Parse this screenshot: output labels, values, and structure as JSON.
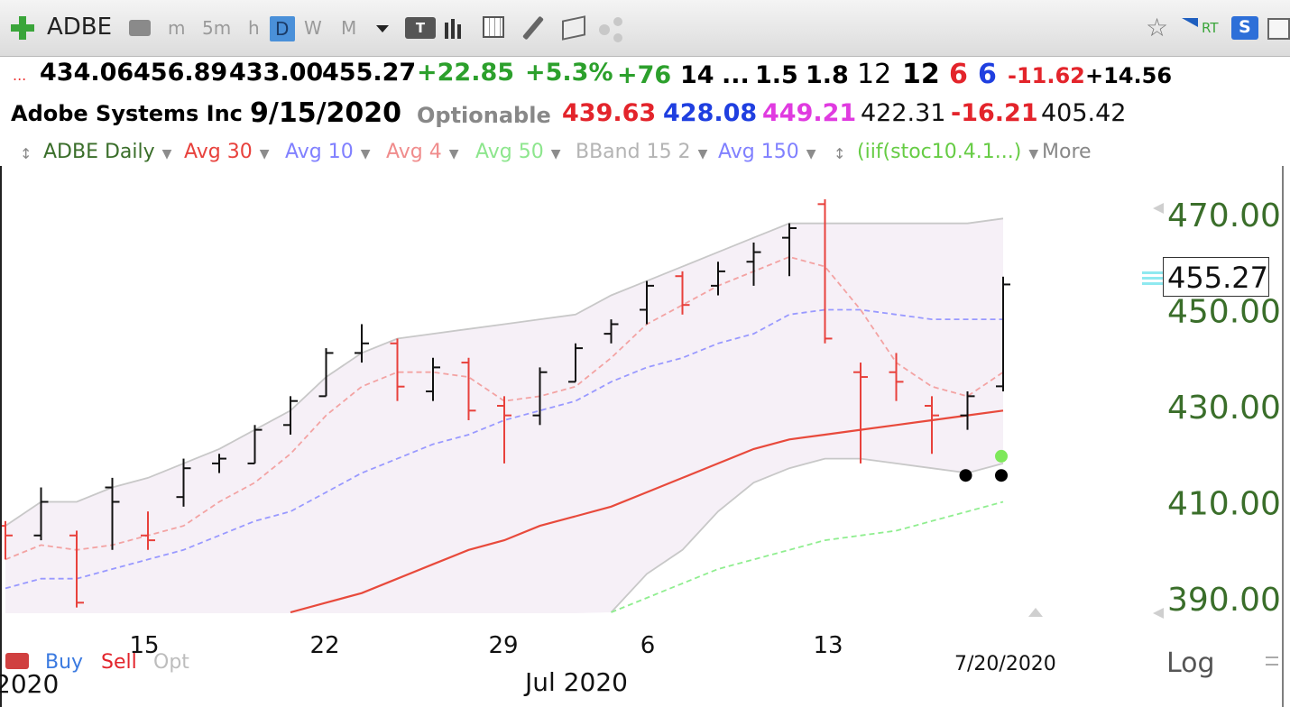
{
  "toolbar": {
    "symbol": "ADBE",
    "intervals": [
      "m",
      "5m",
      "h",
      "D",
      "W",
      "M"
    ],
    "active_interval": "D",
    "rt_label": "RT",
    "s_label": "S"
  },
  "quote": {
    "open": "434.06",
    "high": "456.89",
    "low": "433.00",
    "close": "455.27",
    "change": "+22.85",
    "change_pct": "+5.3%",
    "v1": "+76",
    "v2": "14",
    "ellipsis": "...",
    "v3": "1.5",
    "v4": "1.8",
    "v5": "12",
    "v6": "12",
    "v7": "6",
    "v8": "6",
    "v9": "-11.62",
    "v10": "+14.56"
  },
  "info": {
    "company": "Adobe Systems Inc",
    "date": "9/15/2020",
    "optionable": "Optionable",
    "p1": "439.63",
    "p2": "428.08",
    "p3": "449.21",
    "p4": "422.31",
    "p5": "-16.21",
    "p6": "405.42"
  },
  "legend": [
    {
      "label": "ADBE Daily",
      "color": "#3a6e2a"
    },
    {
      "label": "Avg 30",
      "color": "#e8413c"
    },
    {
      "label": "Avg 10",
      "color": "#8080ff"
    },
    {
      "label": "Avg 4",
      "color": "#f08c8c"
    },
    {
      "label": "Avg 50",
      "color": "#8de68d"
    },
    {
      "label": "BBand 15 2",
      "color": "#b4b4b4"
    },
    {
      "label": "Avg 150",
      "color": "#8080ff"
    },
    {
      "label": "(iif(stoc10.4.1...)",
      "color": "#66cc44"
    }
  ],
  "legend_more": "More",
  "price_label": "455.27",
  "bottom": {
    "buy": "Buy",
    "sell": "Sell",
    "opt": "Opt",
    "year_left": "2020",
    "month": "Jul 2020",
    "date": "7/20/2020",
    "log": "Log"
  },
  "chart_data": {
    "type": "ohlc",
    "title": "ADBE Daily",
    "ylim": [
      386,
      474
    ],
    "y_ticks": [
      470,
      450,
      430,
      410,
      390
    ],
    "y_tick_labels": [
      "470.00",
      "450.00",
      "430.00",
      "410.00",
      "390.00"
    ],
    "x_tick_labels": [
      "15",
      "22",
      "29",
      "6",
      "13"
    ],
    "last_price": 455.27,
    "bars": [
      {
        "o": 405.0,
        "h": 406.0,
        "l": 398.0,
        "c": 403.0,
        "dir": "down"
      },
      {
        "o": 403.0,
        "h": 413.0,
        "l": 402.0,
        "c": 410.0,
        "dir": "up"
      },
      {
        "o": 403.0,
        "h": 404.0,
        "l": 388.0,
        "c": 389.0,
        "dir": "down"
      },
      {
        "o": 413.0,
        "h": 415.0,
        "l": 400.0,
        "c": 410.0,
        "dir": "up"
      },
      {
        "o": 403.0,
        "h": 408.0,
        "l": 400.0,
        "c": 402.0,
        "dir": "down"
      },
      {
        "o": 411.0,
        "h": 419.0,
        "l": 409.0,
        "c": 417.0,
        "dir": "up"
      },
      {
        "o": 418.0,
        "h": 420.0,
        "l": 416.0,
        "c": 419.0,
        "dir": "up"
      },
      {
        "o": 418.0,
        "h": 426.0,
        "l": 418.0,
        "c": 425.0,
        "dir": "up"
      },
      {
        "o": 426.0,
        "h": 432.0,
        "l": 424.0,
        "c": 431.0,
        "dir": "up"
      },
      {
        "o": 432.0,
        "h": 442.0,
        "l": 432.0,
        "c": 441.0,
        "dir": "up"
      },
      {
        "o": 441.0,
        "h": 447.0,
        "l": 439.0,
        "c": 443.0,
        "dir": "up"
      },
      {
        "o": 443.0,
        "h": 444.0,
        "l": 431.0,
        "c": 434.0,
        "dir": "down"
      },
      {
        "o": 433.0,
        "h": 440.0,
        "l": 431.0,
        "c": 438.0,
        "dir": "up"
      },
      {
        "o": 439.0,
        "h": 440.0,
        "l": 427.0,
        "c": 429.0,
        "dir": "down"
      },
      {
        "o": 430.0,
        "h": 432.0,
        "l": 418.0,
        "c": 428.0,
        "dir": "down"
      },
      {
        "o": 428.0,
        "h": 438.0,
        "l": 426.0,
        "c": 437.0,
        "dir": "up"
      },
      {
        "o": 435.0,
        "h": 443.0,
        "l": 435.0,
        "c": 442.0,
        "dir": "up"
      },
      {
        "o": 445.0,
        "h": 448.0,
        "l": 443.0,
        "c": 447.0,
        "dir": "up"
      },
      {
        "o": 450.0,
        "h": 456.0,
        "l": 447.0,
        "c": 455.0,
        "dir": "up"
      },
      {
        "o": 457.0,
        "h": 458.0,
        "l": 449.0,
        "c": 451.0,
        "dir": "down"
      },
      {
        "o": 455.0,
        "h": 460.0,
        "l": 453.0,
        "c": 458.0,
        "dir": "up"
      },
      {
        "o": 460.0,
        "h": 464.0,
        "l": 455.0,
        "c": 462.0,
        "dir": "up"
      },
      {
        "o": 465.0,
        "h": 468.0,
        "l": 457.0,
        "c": 467.0,
        "dir": "up"
      },
      {
        "o": 472.0,
        "h": 473.0,
        "l": 443.0,
        "c": 444.0,
        "dir": "down"
      },
      {
        "o": 437.0,
        "h": 439.0,
        "l": 418.0,
        "c": 436.0,
        "dir": "down"
      },
      {
        "o": 437.0,
        "h": 441.0,
        "l": 431.0,
        "c": 435.0,
        "dir": "down"
      },
      {
        "o": 430.0,
        "h": 432.0,
        "l": 420.0,
        "c": 428.0,
        "dir": "down"
      },
      {
        "o": 428.0,
        "h": 433.0,
        "l": 425.0,
        "c": 432.0,
        "dir": "up"
      },
      {
        "o": 434.06,
        "h": 456.89,
        "l": 433.0,
        "c": 455.27,
        "dir": "up"
      }
    ],
    "series": [
      {
        "name": "Avg 4",
        "color": "#f3a3a3",
        "dash": true,
        "values": [
          398,
          401,
          400,
          401,
          403,
          405,
          410,
          414,
          420,
          428,
          434,
          437,
          437,
          436,
          431,
          432,
          434,
          440,
          447,
          451,
          455,
          458,
          461,
          459,
          450,
          439,
          434,
          432,
          437
        ]
      },
      {
        "name": "Avg 10",
        "color": "#9999ff",
        "dash": true,
        "values": [
          392,
          394,
          394,
          396,
          398,
          400,
          403,
          406,
          408,
          412,
          416,
          419,
          422,
          424,
          427,
          429,
          431,
          435,
          438,
          440,
          443,
          445,
          449,
          450,
          450,
          449,
          448,
          448,
          448
        ]
      },
      {
        "name": "Avg 30",
        "color": "#e84a3c",
        "dash": false,
        "values": [
          null,
          null,
          null,
          null,
          null,
          null,
          null,
          null,
          387,
          389,
          391,
          394,
          397,
          400,
          402,
          405,
          407,
          409,
          412,
          415,
          418,
          421,
          423,
          424,
          425,
          426,
          427,
          428,
          429
        ]
      },
      {
        "name": "Avg 50",
        "color": "#90ee90",
        "dash": true,
        "values": [
          null,
          null,
          null,
          null,
          null,
          null,
          null,
          null,
          null,
          null,
          null,
          null,
          null,
          null,
          null,
          null,
          null,
          387,
          390,
          393,
          396,
          398,
          400,
          402,
          403,
          404,
          406,
          408,
          410
        ]
      },
      {
        "name": "BBand upper",
        "color": "#c8c8c8",
        "dash": false,
        "values": [
          405,
          410,
          410,
          413,
          415,
          418,
          421,
          425,
          429,
          436,
          441,
          444,
          445,
          446,
          447,
          448,
          449,
          453,
          456,
          459,
          462,
          465,
          468,
          468,
          468,
          468,
          468,
          468,
          469
        ]
      },
      {
        "name": "BBand lower",
        "color": "#c8c8c8",
        "dash": false,
        "values": [
          null,
          null,
          null,
          null,
          null,
          null,
          null,
          null,
          null,
          null,
          null,
          null,
          null,
          null,
          null,
          null,
          null,
          387,
          395,
          400,
          408,
          414,
          417,
          419,
          419,
          418,
          417,
          416,
          418
        ]
      }
    ],
    "signals": [
      {
        "bar": 27,
        "value": 415.5,
        "color": "#000000"
      },
      {
        "bar": 28,
        "value": 415.5,
        "color": "#000000"
      },
      {
        "bar": 28,
        "value": 419.5,
        "color": "#7ee85a"
      }
    ]
  }
}
